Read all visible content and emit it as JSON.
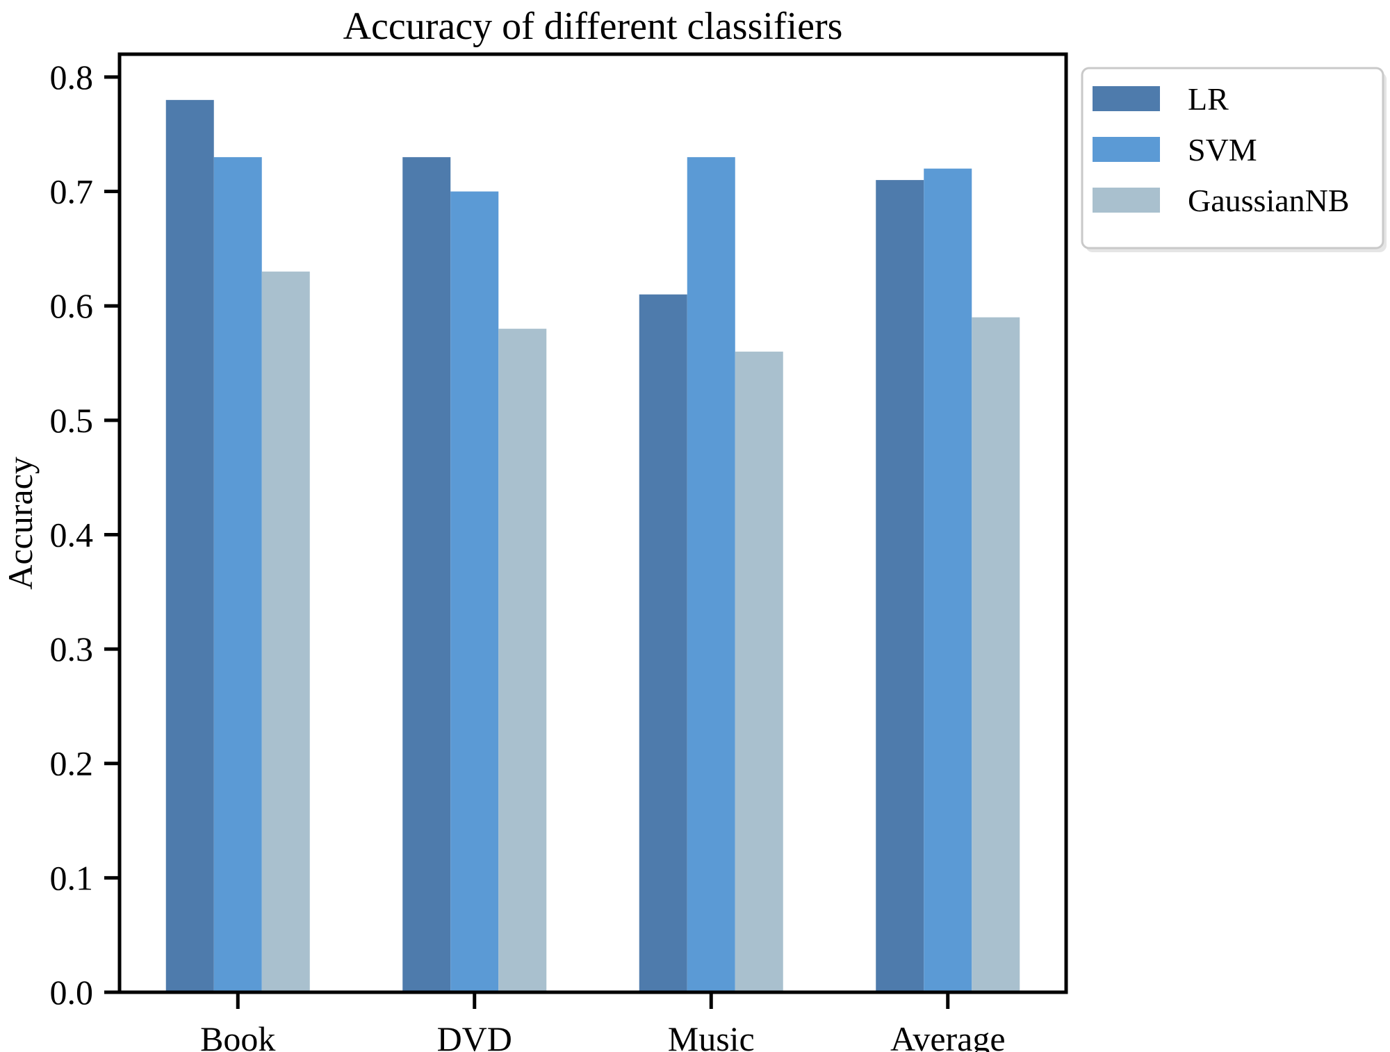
{
  "figure": {
    "background": "#ffffff",
    "axis_color": "#000000",
    "text_color": "#000000",
    "legend_border_color": "#c9c9c9"
  },
  "chart_data": {
    "type": "bar",
    "title": "Accuracy of different classifiers",
    "xlabel": "",
    "ylabel": "Accuracy",
    "categories": [
      "Book",
      "DVD",
      "Music",
      "Average"
    ],
    "series": [
      {
        "name": "LR",
        "color": "#4E7BAC",
        "values": [
          0.78,
          0.73,
          0.61,
          0.71
        ]
      },
      {
        "name": "SVM",
        "color": "#5B9AD5",
        "values": [
          0.73,
          0.7,
          0.73,
          0.72
        ]
      },
      {
        "name": "GaussianNB",
        "color": "#A9C0CE",
        "values": [
          0.63,
          0.58,
          0.56,
          0.59
        ]
      }
    ],
    "ylim": [
      0.0,
      0.82
    ],
    "yticks": [
      0.0,
      0.1,
      0.2,
      0.3,
      0.4,
      0.5,
      0.6,
      0.7,
      0.8
    ],
    "ytick_labels": [
      "0.0",
      "0.1",
      "0.2",
      "0.3",
      "0.4",
      "0.5",
      "0.6",
      "0.7",
      "0.8"
    ],
    "grid": false,
    "legend_position": "outside-upper-right",
    "legend_entries": [
      "LR",
      "SVM",
      "GaussianNB"
    ]
  }
}
